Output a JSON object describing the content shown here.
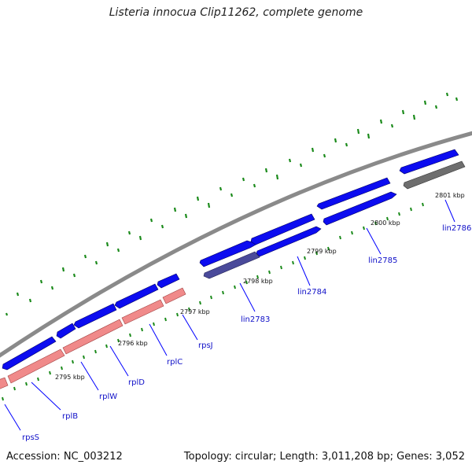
{
  "title": "Listeria innocua Clip11262, complete genome",
  "footer": {
    "accession": "Accession: NC_003212",
    "summary": "Topology: circular; Length: 3,011,208 bp; Genes: 3,052"
  },
  "colors": {
    "cds": "#0c0cf0",
    "rrna_like": "#f08a8a",
    "alt_cds": "#4a4a9a",
    "pseudo": "#6e6e6e",
    "backbone": "#8a8a8a",
    "gc_ticks": "#1a8a1a",
    "label_line": "#0000ff"
  },
  "position_labels": [
    "2795 kbp",
    "2796 kbp",
    "2797 kbp",
    "2798 kbp",
    "2799 kbp",
    "2800 kbp",
    "2801 kbp"
  ],
  "gene_labels": [
    "rpsS",
    "rplB",
    "rplW",
    "rplD",
    "rplC",
    "rpsJ",
    "lin2783",
    "lin2784",
    "lin2785",
    "lin2786"
  ]
}
